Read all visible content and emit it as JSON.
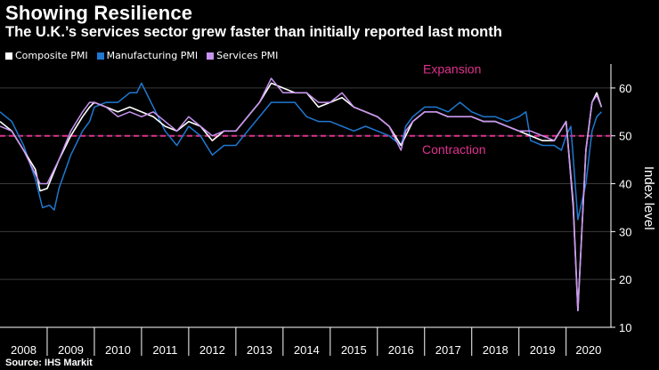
{
  "header": {
    "title": "Showing Resilience",
    "subtitle": "The U.K.’s services sector grew faster than initially reported last month"
  },
  "source": "Source: IHS Markit",
  "colors": {
    "composite": "#ffffff",
    "manufacturing": "#1f78d1",
    "services": "#c993f0",
    "threshold": "#e0318e"
  },
  "chart_data": {
    "type": "line",
    "title": "Showing Resilience",
    "subtitle": "The U.K.’s services sector grew faster than initially reported last month",
    "ylabel": "Index level",
    "xlabel": "",
    "ylim": [
      10,
      65
    ],
    "xlim": [
      2008.0,
      2020.95
    ],
    "yticks": [
      10,
      20,
      30,
      40,
      50,
      60
    ],
    "year_labels": [
      "2008",
      "2009",
      "2010",
      "2011",
      "2012",
      "2013",
      "2014",
      "2015",
      "2016",
      "2017",
      "2018",
      "2019",
      "2020"
    ],
    "threshold": 50,
    "annotations": {
      "expansion": "Expansion",
      "contraction": "Contraction"
    },
    "legend_position": "top-left",
    "series": [
      {
        "name": "Composite PMI",
        "key": "composite",
        "points": [
          [
            2008.0,
            53
          ],
          [
            2008.25,
            51
          ],
          [
            2008.5,
            47
          ],
          [
            2008.75,
            43
          ],
          [
            2008.85,
            38.5
          ],
          [
            2009.0,
            39
          ],
          [
            2009.25,
            45
          ],
          [
            2009.5,
            50
          ],
          [
            2009.75,
            54
          ],
          [
            2009.9,
            56
          ],
          [
            2010.0,
            57
          ],
          [
            2010.25,
            56
          ],
          [
            2010.5,
            55
          ],
          [
            2010.75,
            56
          ],
          [
            2011.0,
            55
          ],
          [
            2011.25,
            54
          ],
          [
            2011.5,
            52
          ],
          [
            2011.75,
            51
          ],
          [
            2012.0,
            53
          ],
          [
            2012.25,
            52
          ],
          [
            2012.5,
            49
          ],
          [
            2012.75,
            51
          ],
          [
            2013.0,
            51
          ],
          [
            2013.25,
            54
          ],
          [
            2013.5,
            57
          ],
          [
            2013.75,
            61
          ],
          [
            2014.0,
            60
          ],
          [
            2014.25,
            59
          ],
          [
            2014.5,
            59
          ],
          [
            2014.75,
            56
          ],
          [
            2015.0,
            57
          ],
          [
            2015.25,
            58
          ],
          [
            2015.5,
            56
          ],
          [
            2015.75,
            55
          ],
          [
            2016.0,
            54
          ],
          [
            2016.25,
            52
          ],
          [
            2016.5,
            48
          ],
          [
            2016.6,
            50
          ],
          [
            2016.75,
            53
          ],
          [
            2017.0,
            55
          ],
          [
            2017.25,
            55
          ],
          [
            2017.5,
            54
          ],
          [
            2017.75,
            54
          ],
          [
            2018.0,
            54
          ],
          [
            2018.25,
            53
          ],
          [
            2018.5,
            53
          ],
          [
            2018.75,
            52
          ],
          [
            2019.0,
            51
          ],
          [
            2019.25,
            50
          ],
          [
            2019.5,
            49
          ],
          [
            2019.75,
            49
          ],
          [
            2020.0,
            53
          ],
          [
            2020.15,
            36
          ],
          [
            2020.25,
            13.5
          ],
          [
            2020.42,
            47
          ],
          [
            2020.55,
            57
          ],
          [
            2020.65,
            59
          ],
          [
            2020.75,
            56
          ]
        ]
      },
      {
        "name": "Manufacturing PMI",
        "key": "manufacturing",
        "points": [
          [
            2008.0,
            55
          ],
          [
            2008.25,
            53
          ],
          [
            2008.5,
            48
          ],
          [
            2008.75,
            41
          ],
          [
            2008.9,
            35
          ],
          [
            2009.05,
            35.5
          ],
          [
            2009.15,
            34.5
          ],
          [
            2009.25,
            39
          ],
          [
            2009.5,
            46
          ],
          [
            2009.75,
            51
          ],
          [
            2009.9,
            53
          ],
          [
            2010.0,
            56
          ],
          [
            2010.25,
            57
          ],
          [
            2010.5,
            57
          ],
          [
            2010.75,
            59
          ],
          [
            2010.9,
            59
          ],
          [
            2011.0,
            61
          ],
          [
            2011.25,
            56
          ],
          [
            2011.5,
            51
          ],
          [
            2011.75,
            48
          ],
          [
            2012.0,
            52
          ],
          [
            2012.25,
            50
          ],
          [
            2012.5,
            46
          ],
          [
            2012.75,
            48
          ],
          [
            2013.0,
            48
          ],
          [
            2013.25,
            51
          ],
          [
            2013.5,
            54
          ],
          [
            2013.75,
            57
          ],
          [
            2014.0,
            57
          ],
          [
            2014.25,
            57
          ],
          [
            2014.5,
            54
          ],
          [
            2014.75,
            53
          ],
          [
            2015.0,
            53
          ],
          [
            2015.25,
            52
          ],
          [
            2015.5,
            51
          ],
          [
            2015.75,
            52
          ],
          [
            2016.0,
            51
          ],
          [
            2016.25,
            50
          ],
          [
            2016.5,
            48
          ],
          [
            2016.6,
            52
          ],
          [
            2016.75,
            54
          ],
          [
            2017.0,
            56
          ],
          [
            2017.25,
            56
          ],
          [
            2017.5,
            55
          ],
          [
            2017.75,
            57
          ],
          [
            2018.0,
            55
          ],
          [
            2018.25,
            54
          ],
          [
            2018.5,
            54
          ],
          [
            2018.75,
            53
          ],
          [
            2019.0,
            54
          ],
          [
            2019.15,
            55
          ],
          [
            2019.25,
            49
          ],
          [
            2019.5,
            48
          ],
          [
            2019.75,
            48
          ],
          [
            2019.9,
            47
          ],
          [
            2020.0,
            50
          ],
          [
            2020.1,
            52
          ],
          [
            2020.25,
            32.5
          ],
          [
            2020.42,
            40
          ],
          [
            2020.55,
            51
          ],
          [
            2020.65,
            54
          ],
          [
            2020.75,
            55
          ]
        ]
      },
      {
        "name": "Services PMI",
        "key": "services",
        "points": [
          [
            2008.0,
            52
          ],
          [
            2008.25,
            51
          ],
          [
            2008.5,
            47
          ],
          [
            2008.75,
            42
          ],
          [
            2008.85,
            40
          ],
          [
            2009.0,
            40
          ],
          [
            2009.25,
            45
          ],
          [
            2009.5,
            51
          ],
          [
            2009.75,
            55
          ],
          [
            2009.9,
            57
          ],
          [
            2010.0,
            57
          ],
          [
            2010.25,
            56
          ],
          [
            2010.5,
            54
          ],
          [
            2010.75,
            55
          ],
          [
            2011.0,
            54
          ],
          [
            2011.25,
            55
          ],
          [
            2011.5,
            53
          ],
          [
            2011.75,
            51
          ],
          [
            2012.0,
            54
          ],
          [
            2012.25,
            52
          ],
          [
            2012.5,
            50
          ],
          [
            2012.75,
            51
          ],
          [
            2013.0,
            51
          ],
          [
            2013.25,
            54
          ],
          [
            2013.5,
            57
          ],
          [
            2013.75,
            62
          ],
          [
            2014.0,
            59
          ],
          [
            2014.25,
            59
          ],
          [
            2014.5,
            59
          ],
          [
            2014.75,
            57
          ],
          [
            2015.0,
            57
          ],
          [
            2015.25,
            59
          ],
          [
            2015.5,
            56
          ],
          [
            2015.75,
            55
          ],
          [
            2016.0,
            54
          ],
          [
            2016.25,
            52
          ],
          [
            2016.5,
            47
          ],
          [
            2016.6,
            51
          ],
          [
            2016.75,
            53
          ],
          [
            2017.0,
            55
          ],
          [
            2017.25,
            55
          ],
          [
            2017.5,
            54
          ],
          [
            2017.75,
            54
          ],
          [
            2018.0,
            54
          ],
          [
            2018.25,
            53
          ],
          [
            2018.5,
            53
          ],
          [
            2018.75,
            52
          ],
          [
            2019.0,
            51
          ],
          [
            2019.25,
            51
          ],
          [
            2019.5,
            50
          ],
          [
            2019.75,
            49
          ],
          [
            2020.0,
            53
          ],
          [
            2020.15,
            35
          ],
          [
            2020.25,
            13.5
          ],
          [
            2020.42,
            47
          ],
          [
            2020.55,
            57
          ],
          [
            2020.65,
            58.5
          ],
          [
            2020.75,
            56
          ]
        ]
      }
    ]
  }
}
